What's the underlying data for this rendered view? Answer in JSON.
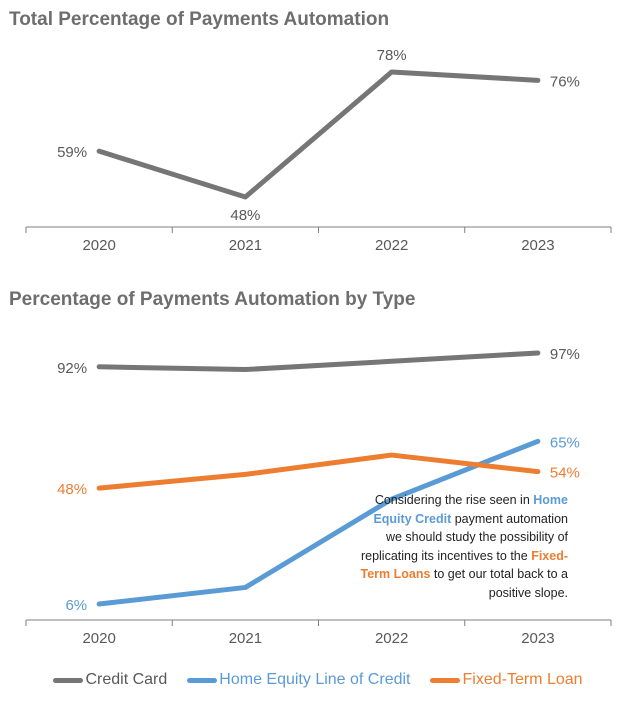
{
  "colors": {
    "credit_card": "#767676",
    "home_equity": "#5b9bd5",
    "fixed_term": "#ed7d31",
    "axis": "#7f7f7f",
    "tick_text": "#595959"
  },
  "chart_data": [
    {
      "type": "line",
      "title": "Total Percentage of Payments Automation",
      "categories": [
        "2020",
        "2021",
        "2022",
        "2023"
      ],
      "series": [
        {
          "values": [
            59,
            48,
            78,
            76
          ]
        }
      ],
      "data_labels": [
        "59%",
        "48%",
        "78%",
        "76%"
      ],
      "ylim": [
        45,
        82
      ],
      "grid": false
    },
    {
      "type": "line",
      "title": "Percentage of Payments Automation by Type",
      "categories": [
        "2020",
        "2021",
        "2022",
        "2023"
      ],
      "series": [
        {
          "name": "Credit Card",
          "values": [
            92,
            91,
            94,
            97
          ]
        },
        {
          "name": "Home Equity Line of Credit",
          "values": [
            6,
            12,
            44,
            65
          ]
        },
        {
          "name": "Fixed-Term Loan",
          "values": [
            48,
            53,
            60,
            54
          ]
        }
      ],
      "data_labels": [
        {
          "series": "Credit Card",
          "labels": [
            "92%",
            "",
            "",
            "97%"
          ]
        },
        {
          "series": "Home Equity Line of Credit",
          "labels": [
            "6%",
            "",
            "",
            "65%"
          ]
        },
        {
          "series": "Fixed-Term Loan",
          "labels": [
            "48%",
            "",
            "",
            "54%"
          ]
        }
      ],
      "ylim": [
        0,
        100
      ],
      "grid": false,
      "legend": "bottom",
      "annotation": {
        "part1": "Considering the rise seen in ",
        "highlight1": "Home Equity Credit",
        "part2": " payment automation we should study the possibility of replicating its incentives to the ",
        "highlight2": "Fixed-Term Loans",
        "part3": " to get our total back to a positive slope."
      }
    }
  ]
}
